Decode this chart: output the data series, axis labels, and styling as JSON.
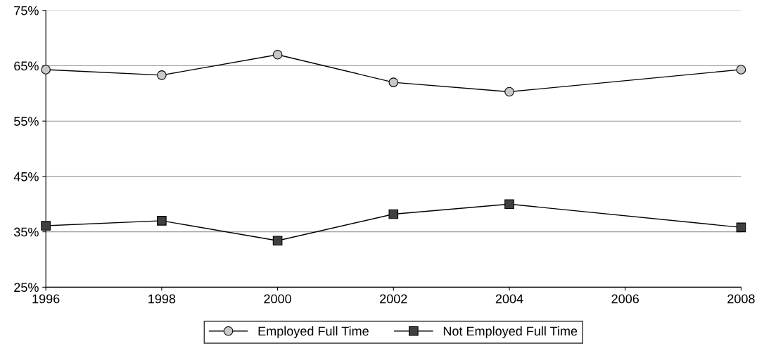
{
  "chart_data": {
    "type": "line",
    "x": [
      1996,
      1998,
      2000,
      2002,
      2004,
      2008
    ],
    "series": [
      {
        "name": "Employed Full Time",
        "color": "#c8c8c8",
        "marker": "circle",
        "values": [
          64.3,
          63.3,
          67.0,
          62.0,
          60.3,
          64.3
        ]
      },
      {
        "name": "Not Employed Full Time",
        "color": "#404040",
        "marker": "square",
        "values": [
          36.1,
          37.0,
          33.4,
          38.2,
          40.0,
          35.8
        ]
      }
    ],
    "xlim": [
      1996,
      2008
    ],
    "xticks": [
      1996,
      1998,
      2000,
      2002,
      2004,
      2006,
      2008
    ],
    "ylim": [
      25,
      75
    ],
    "yticks": [
      {
        "value": 25,
        "label": "25%"
      },
      {
        "value": 35,
        "label": "35%"
      },
      {
        "value": 45,
        "label": "45%"
      },
      {
        "value": 55,
        "label": "55%"
      },
      {
        "value": 65,
        "label": "65%"
      },
      {
        "value": 75,
        "label": "75%"
      }
    ],
    "grid": "y",
    "legend": "bottom",
    "line_style": "solid"
  }
}
